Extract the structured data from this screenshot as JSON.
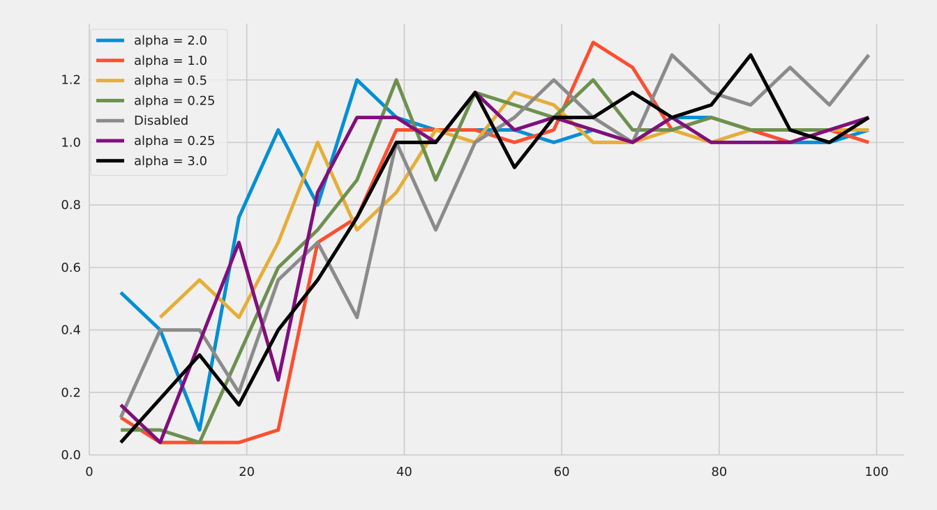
{
  "chart_data": {
    "type": "line",
    "title": "",
    "xlabel": "",
    "ylabel": "",
    "xlim": [
      0,
      103.5
    ],
    "ylim": [
      0,
      1.38
    ],
    "grid": true,
    "legend_position": "top-left",
    "x_ticks": [
      0,
      20,
      40,
      60,
      80,
      100
    ],
    "y_ticks": [
      0.0,
      0.2,
      0.4,
      0.6,
      0.8,
      1.0,
      1.2
    ],
    "x_tick_labels": [
      "0",
      "20",
      "40",
      "60",
      "80",
      "100"
    ],
    "y_tick_labels": [
      "0.0",
      "0.2",
      "0.4",
      "0.6",
      "0.8",
      "1.0",
      "1.2"
    ],
    "x": [
      4,
      9,
      14,
      19,
      24,
      29,
      34,
      39,
      44,
      49,
      54,
      59,
      64,
      69,
      74,
      79,
      84,
      89,
      94,
      99
    ],
    "series": [
      {
        "name": "alpha = 2.0",
        "color": "#008fd5",
        "values": [
          0.52,
          0.4,
          0.08,
          0.76,
          1.04,
          0.8,
          1.2,
          1.08,
          1.04,
          1.04,
          1.04,
          1.0,
          1.04,
          1.0,
          1.08,
          1.08,
          1.04,
          1.0,
          1.0,
          1.04
        ]
      },
      {
        "name": "alpha = 1.0",
        "color": "#fc4f30",
        "values": [
          0.12,
          0.04,
          0.04,
          0.04,
          0.08,
          0.68,
          0.76,
          1.04,
          1.04,
          1.04,
          1.0,
          1.04,
          1.32,
          1.24,
          1.04,
          1.08,
          1.04,
          1.0,
          1.04,
          1.0
        ]
      },
      {
        "name": "alpha = 0.5",
        "color": "#e5ae38",
        "values": [
          null,
          0.44,
          0.56,
          0.44,
          0.68,
          1.0,
          0.72,
          0.84,
          1.04,
          1.0,
          1.16,
          1.12,
          1.0,
          1.0,
          1.04,
          1.0,
          1.04,
          1.04,
          1.04,
          1.04
        ]
      },
      {
        "name": "alpha = 0.25",
        "color": "#6d904f",
        "values": [
          0.08,
          0.08,
          0.04,
          0.32,
          0.6,
          0.72,
          0.88,
          1.2,
          0.88,
          1.16,
          1.12,
          1.08,
          1.2,
          1.04,
          1.04,
          1.08,
          1.04,
          1.04,
          1.04,
          1.08
        ]
      },
      {
        "name": "Disabled",
        "color": "#8b8b8b",
        "values": [
          0.12,
          0.4,
          0.4,
          0.2,
          0.56,
          0.68,
          0.44,
          1.0,
          0.72,
          1.0,
          1.08,
          1.2,
          1.08,
          1.0,
          1.28,
          1.16,
          1.12,
          1.24,
          1.12,
          1.28
        ]
      },
      {
        "name": "alpha = 0.25",
        "color": "#810f7c",
        "values": [
          0.16,
          0.04,
          0.36,
          0.68,
          0.24,
          0.84,
          1.08,
          1.08,
          1.0,
          1.16,
          1.04,
          1.08,
          1.04,
          1.0,
          1.08,
          1.0,
          1.0,
          1.0,
          1.04,
          1.08
        ]
      },
      {
        "name": "alpha = 3.0",
        "color": "#000000",
        "values": [
          0.04,
          0.18,
          0.32,
          0.16,
          0.4,
          0.56,
          0.76,
          1.0,
          1.0,
          1.16,
          0.92,
          1.08,
          1.08,
          1.16,
          1.08,
          1.12,
          1.28,
          1.04,
          1.0,
          1.08
        ]
      }
    ]
  }
}
